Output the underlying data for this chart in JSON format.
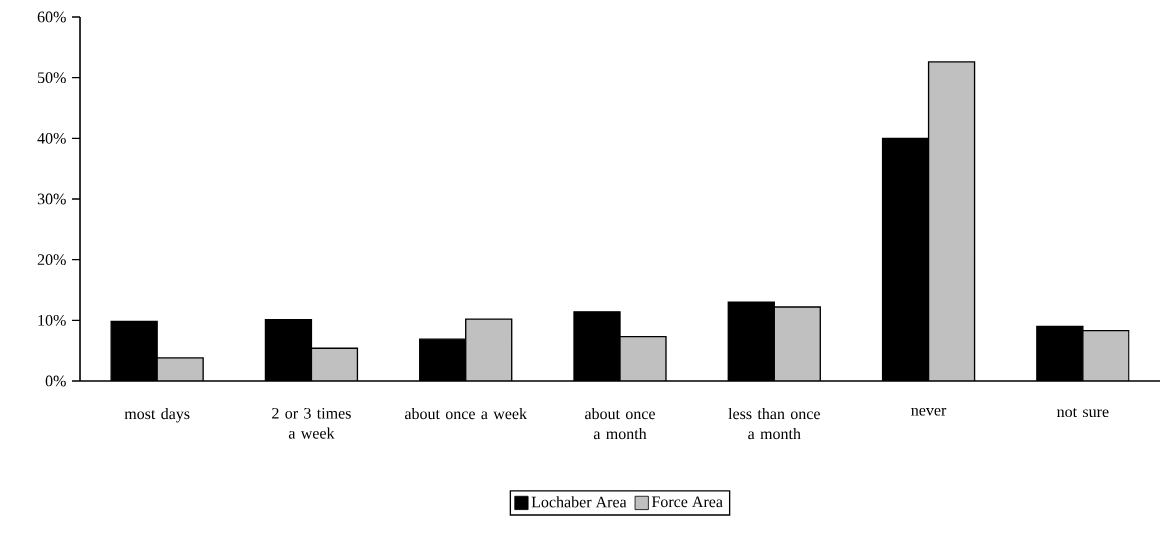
{
  "chart_data": {
    "type": "bar",
    "categories": [
      "most days",
      "2 or 3 times a week",
      "about once a week",
      "about once a month",
      "less than once a month",
      "never",
      "not sure"
    ],
    "series": [
      {
        "name": "Lochaber Area",
        "color": "#000000",
        "values": [
          9.8,
          10.1,
          6.9,
          11.4,
          13.0,
          40.0,
          9.0
        ]
      },
      {
        "name": "Force Area",
        "color": "#c0c0c0",
        "values": [
          3.8,
          5.4,
          10.2,
          7.3,
          12.2,
          52.6,
          8.3
        ]
      }
    ],
    "ylim": [
      0,
      60
    ],
    "yticks": [
      {
        "value": 0,
        "label": "0%"
      },
      {
        "value": 10,
        "label": "10%"
      },
      {
        "value": 20,
        "label": "20%"
      },
      {
        "value": 30,
        "label": "30%"
      },
      {
        "value": 40,
        "label": "40%"
      },
      {
        "value": 50,
        "label": "50%"
      },
      {
        "value": 60,
        "label": "60%"
      }
    ],
    "grid": false,
    "legend": "bottom"
  }
}
